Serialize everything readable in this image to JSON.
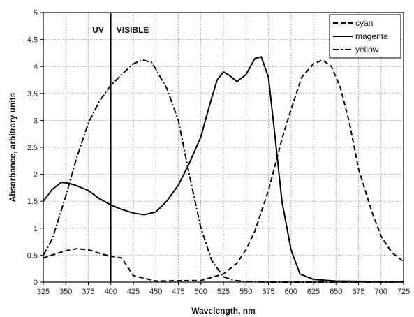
{
  "chart_data": {
    "type": "line",
    "xlabel": "Wavelength, nm",
    "ylabel": "Absorbance,  arbitrary units",
    "xlim": [
      325,
      725
    ],
    "ylim": [
      0,
      5
    ],
    "xticks": [
      325,
      350,
      375,
      400,
      425,
      450,
      475,
      500,
      525,
      550,
      575,
      600,
      625,
      650,
      675,
      700,
      725
    ],
    "yticks": [
      0,
      0.5,
      1,
      1.5,
      2,
      2.5,
      3,
      3.5,
      4,
      4.5,
      5
    ],
    "grid": true,
    "legend_position": "top-right",
    "divider": {
      "x": 400,
      "left_label": "UV",
      "right_label": "VISIBLE"
    },
    "series": [
      {
        "name": "cyan",
        "style": "dashed",
        "x": [
          325,
          340,
          350,
          362,
          375,
          390,
          400,
          412,
          425,
          450,
          500,
          525,
          540,
          550,
          560,
          575,
          590,
          600,
          612,
          625,
          635,
          645,
          655,
          665,
          675,
          690,
          700,
          712,
          725
        ],
        "y": [
          0.45,
          0.53,
          0.58,
          0.62,
          0.6,
          0.52,
          0.48,
          0.45,
          0.12,
          0.02,
          0.03,
          0.15,
          0.35,
          0.6,
          0.95,
          1.7,
          2.65,
          3.2,
          3.8,
          4.05,
          4.12,
          4.0,
          3.6,
          2.95,
          2.1,
          1.3,
          0.85,
          0.55,
          0.38
        ]
      },
      {
        "name": "magenta",
        "style": "solid",
        "x": [
          325,
          335,
          345,
          352,
          360,
          375,
          387,
          400,
          412,
          425,
          437,
          450,
          462,
          475,
          487,
          500,
          510,
          518,
          525,
          532,
          540,
          550,
          560,
          567,
          575,
          582,
          590,
          600,
          610,
          625,
          650,
          700,
          725
        ],
        "y": [
          1.5,
          1.72,
          1.85,
          1.84,
          1.8,
          1.7,
          1.55,
          1.43,
          1.35,
          1.28,
          1.25,
          1.3,
          1.5,
          1.8,
          2.2,
          2.7,
          3.3,
          3.75,
          3.9,
          3.83,
          3.72,
          3.85,
          4.15,
          4.18,
          3.8,
          2.75,
          1.5,
          0.6,
          0.15,
          0.05,
          0.02,
          0.01,
          0.01
        ]
      },
      {
        "name": "yellow",
        "style": "dash-dot",
        "x": [
          325,
          335,
          350,
          362,
          375,
          387,
          400,
          412,
          425,
          435,
          445,
          450,
          462,
          475,
          487,
          500,
          512,
          525,
          537,
          550,
          575,
          600,
          650,
          725
        ],
        "y": [
          0.5,
          0.8,
          1.6,
          2.3,
          2.95,
          3.35,
          3.65,
          3.85,
          4.05,
          4.12,
          4.08,
          3.95,
          3.6,
          3.0,
          2.0,
          1.0,
          0.4,
          0.1,
          0.03,
          0.01,
          0.0,
          0.0,
          0.0,
          0.0
        ]
      }
    ]
  }
}
